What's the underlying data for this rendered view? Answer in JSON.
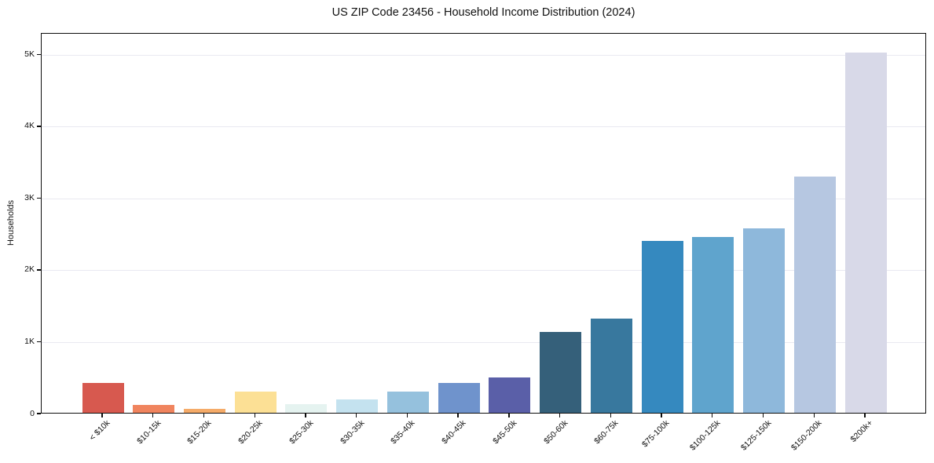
{
  "chart_data": {
    "type": "bar",
    "title": "US ZIP Code 23456 - Household Income Distribution (2024)",
    "xlabel": "",
    "ylabel": "Households",
    "categories": [
      "< $10k",
      "$10-15k",
      "$15-20k",
      "$20-25k",
      "$25-30k",
      "$30-35k",
      "$35-40k",
      "$40-45k",
      "$45-50k",
      "$50-60k",
      "$60-75k",
      "$75-100k",
      "$100-125k",
      "$125-150k",
      "$150-200k",
      "$200k+"
    ],
    "values": [
      420,
      110,
      55,
      290,
      120,
      190,
      300,
      410,
      490,
      1130,
      1310,
      2390,
      2450,
      2570,
      3290,
      5020
    ],
    "bar_colors": [
      "#d7594f",
      "#f0845e",
      "#f5ab69",
      "#fce095",
      "#e5f3f0",
      "#c4e2ef",
      "#95c1dd",
      "#6f93cc",
      "#5a5fa8",
      "#35607a",
      "#38789e",
      "#3589bf",
      "#5fa4cd",
      "#8eb8db",
      "#b6c7e1",
      "#d8d9e8"
    ],
    "ylim": [
      0,
      5300
    ],
    "yticks": [
      {
        "value": 0,
        "label": "0"
      },
      {
        "value": 1000,
        "label": "1K"
      },
      {
        "value": 2000,
        "label": "2K"
      },
      {
        "value": 3000,
        "label": "3K"
      },
      {
        "value": 4000,
        "label": "4K"
      },
      {
        "value": 5000,
        "label": "5K"
      }
    ],
    "grid": "horizontal",
    "legend_position": "none",
    "frame_color": "#0d0d0d",
    "gridline_color": "#e9e9f1",
    "x_tick_rotation_deg": 45
  }
}
